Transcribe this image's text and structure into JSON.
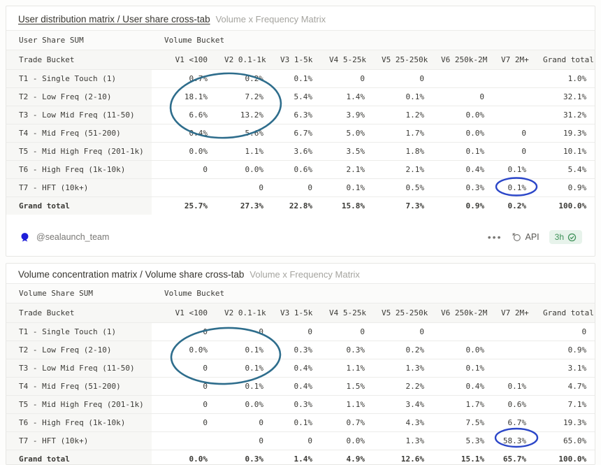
{
  "colors": {
    "teal_circle": "#2e6d8c",
    "blue_circle": "#2b46c8",
    "seal_blue": "#1f1fd9",
    "green_status": "#3e9159"
  },
  "tables": [
    {
      "title": "User distribution matrix / User share cross-tab",
      "subtitle": "Volume x Frequency Matrix",
      "corner_label": "User Share SUM",
      "group_label": "Volume Bucket",
      "row_axis_label": "Trade Bucket",
      "columns": [
        "V1 <100",
        "V2 0.1-1k",
        "V3 1-5k",
        "V4 5-25k",
        "V5 25-250k",
        "V6 250k-2M",
        "V7 2M+",
        "Grand total"
      ],
      "rows": [
        {
          "label": "T1 - Single Touch (1)",
          "values": [
            "0.7%",
            "0.2%",
            "0.1%",
            "0",
            "0",
            "",
            "",
            "1.0%"
          ]
        },
        {
          "label": "T2 - Low Freq (2-10)",
          "values": [
            "18.1%",
            "7.2%",
            "5.4%",
            "1.4%",
            "0.1%",
            "0",
            "",
            "32.1%"
          ]
        },
        {
          "label": "T3 - Low Mid Freq (11-50)",
          "values": [
            "6.6%",
            "13.2%",
            "6.3%",
            "3.9%",
            "1.2%",
            "0.0%",
            "",
            "31.2%"
          ]
        },
        {
          "label": "T4 - Mid Freq (51-200)",
          "values": [
            "0.4%",
            "5.6%",
            "6.7%",
            "5.0%",
            "1.7%",
            "0.0%",
            "0",
            "19.3%"
          ]
        },
        {
          "label": "T5 - Mid High Freq (201-1k)",
          "values": [
            "0.0%",
            "1.1%",
            "3.6%",
            "3.5%",
            "1.8%",
            "0.1%",
            "0",
            "10.1%"
          ]
        },
        {
          "label": "T6 - High Freq (1k-10k)",
          "values": [
            "0",
            "0.0%",
            "0.6%",
            "2.1%",
            "2.1%",
            "0.4%",
            "0.1%",
            "5.4%"
          ]
        },
        {
          "label": "T7 - HFT (10k+)",
          "values": [
            "",
            "0",
            "0",
            "0.1%",
            "0.5%",
            "0.3%",
            "0.1%",
            "0.9%"
          ]
        },
        {
          "label": "Grand total",
          "total": true,
          "values": [
            "25.7%",
            "27.3%",
            "22.8%",
            "15.8%",
            "7.3%",
            "0.9%",
            "0.2%",
            "100.0%"
          ]
        }
      ],
      "footer": {
        "author": "@sealaunch_team",
        "menu": "•••",
        "api_label": "API",
        "refresh_age": "3h"
      }
    },
    {
      "title": "Volume concentration matrix / Volume share cross-tab",
      "subtitle": "Volume x Frequency Matrix",
      "corner_label": "Volume Share SUM",
      "group_label": "Volume Bucket",
      "row_axis_label": "Trade Bucket",
      "columns": [
        "V1 <100",
        "V2 0.1-1k",
        "V3 1-5k",
        "V4 5-25k",
        "V5 25-250k",
        "V6 250k-2M",
        "V7 2M+",
        "Grand total"
      ],
      "rows": [
        {
          "label": "T1 - Single Touch (1)",
          "values": [
            "0",
            "0",
            "0",
            "0",
            "0",
            "",
            "",
            "0"
          ]
        },
        {
          "label": "T2 - Low Freq (2-10)",
          "values": [
            "0.0%",
            "0.1%",
            "0.3%",
            "0.3%",
            "0.2%",
            "0.0%",
            "",
            "0.9%"
          ]
        },
        {
          "label": "T3 - Low Mid Freq (11-50)",
          "values": [
            "0",
            "0.1%",
            "0.4%",
            "1.1%",
            "1.3%",
            "0.1%",
            "",
            "3.1%"
          ]
        },
        {
          "label": "T4 - Mid Freq (51-200)",
          "values": [
            "0",
            "0.1%",
            "0.4%",
            "1.5%",
            "2.2%",
            "0.4%",
            "0.1%",
            "4.7%"
          ]
        },
        {
          "label": "T5 - Mid High Freq (201-1k)",
          "values": [
            "0",
            "0.0%",
            "0.3%",
            "1.1%",
            "3.4%",
            "1.7%",
            "0.6%",
            "7.1%"
          ]
        },
        {
          "label": "T6 - High Freq (1k-10k)",
          "values": [
            "0",
            "0",
            "0.1%",
            "0.7%",
            "4.3%",
            "7.5%",
            "6.7%",
            "19.3%"
          ]
        },
        {
          "label": "T7 - HFT (10k+)",
          "values": [
            "",
            "0",
            "0",
            "0.0%",
            "1.3%",
            "5.3%",
            "58.3%",
            "65.0%"
          ]
        },
        {
          "label": "Grand total",
          "total": true,
          "values": [
            "0.0%",
            "0.3%",
            "1.4%",
            "4.9%",
            "12.6%",
            "15.1%",
            "65.7%",
            "100.0%"
          ]
        }
      ]
    }
  ]
}
